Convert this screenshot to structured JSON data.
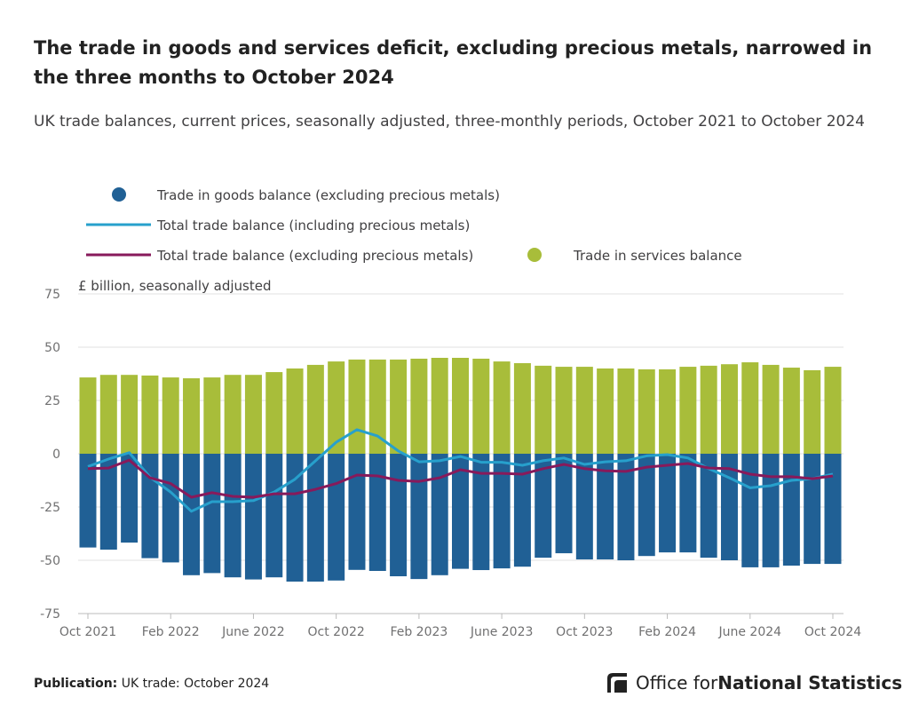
{
  "title": "The trade in goods and services deficit, excluding precious metals, narrowed in the three months to October 2024",
  "subtitle": "UK trade balances, current prices, seasonally adjusted, three-monthly periods, October 2021 to October 2024",
  "footer": {
    "label": "Publication:",
    "value": "UK trade: October 2024"
  },
  "logo": {
    "text_a": "Office for ",
    "text_b": "National Statistics"
  },
  "chart_data": {
    "type": "bar",
    "ylabel": "£ billion, seasonally adjusted",
    "ylim": [
      -75,
      75
    ],
    "yticks": [
      75,
      50,
      25,
      0,
      -25,
      -50,
      -75
    ],
    "grid": true,
    "legend_placement": "top",
    "xticks": [
      "Oct 2021",
      "Feb 2022",
      "June 2022",
      "Oct 2022",
      "Feb 2023",
      "June 2023",
      "Oct 2023",
      "Feb 2024",
      "June 2024",
      "Oct 2024"
    ],
    "categories": [
      "Oct 2021",
      "Nov 2021",
      "Dec 2021",
      "Jan 2022",
      "Feb 2022",
      "Mar 2022",
      "Apr 2022",
      "May 2022",
      "June 2022",
      "Jul 2022",
      "Aug 2022",
      "Sep 2022",
      "Oct 2022",
      "Nov 2022",
      "Dec 2022",
      "Jan 2023",
      "Feb 2023",
      "Mar 2023",
      "Apr 2023",
      "May 2023",
      "June 2023",
      "Jul 2023",
      "Aug 2023",
      "Sep 2023",
      "Oct 2023",
      "Nov 2023",
      "Dec 2023",
      "Jan 2024",
      "Feb 2024",
      "Mar 2024",
      "Apr 2024",
      "May 2024",
      "June 2024",
      "Jul 2024",
      "Aug 2024",
      "Sep 2024",
      "Oct 2024"
    ],
    "series": [
      {
        "name": "Trade in goods balance (excluding precious metals)",
        "kind": "bar",
        "color": "#206095",
        "values": [
          -44,
          -45,
          -41.7,
          -49,
          -51,
          -57,
          -56,
          -58,
          -59,
          -58,
          -60,
          -60,
          -59.5,
          -54.5,
          -55,
          -57.5,
          -58.8,
          -57,
          -54,
          -54.6,
          -53.8,
          -53,
          -48.8,
          -46.7,
          -49.6,
          -49.6,
          -50,
          -48,
          -46.3,
          -46.3,
          -48.8,
          -50,
          -53.3,
          -53.3,
          -52.5,
          -51.7,
          -51.7
        ]
      },
      {
        "name": "Trade in services balance",
        "kind": "bar",
        "color": "#a8bd3a",
        "values": [
          35.8,
          37,
          37,
          36.7,
          35.8,
          35.4,
          35.8,
          37,
          37,
          38.3,
          40,
          41.7,
          43.3,
          44.2,
          44.2,
          44.2,
          44.6,
          45,
          45,
          44.6,
          43.3,
          42.5,
          41.3,
          40.8,
          40.8,
          40,
          40,
          39.6,
          39.6,
          40.8,
          41.3,
          42,
          42.9,
          41.7,
          40.4,
          39.2,
          40.8
        ]
      },
      {
        "name": "Total trade balance (including precious metals)",
        "kind": "line",
        "color": "#27a0cc",
        "values": [
          -6,
          -2.5,
          0.5,
          -11,
          -18,
          -27,
          -22.5,
          -22.5,
          -22,
          -18,
          -12,
          -3.3,
          5.4,
          11.3,
          8.3,
          1.3,
          -3.8,
          -3.3,
          -1.3,
          -4,
          -4,
          -5.4,
          -3.3,
          -2,
          -5,
          -3.8,
          -3.3,
          -1,
          -0.4,
          -2,
          -7,
          -11.3,
          -16,
          -15,
          -12.5,
          -11.7,
          -9.6
        ]
      },
      {
        "name": "Total trade balance (excluding precious metals)",
        "kind": "line",
        "color": "#871a5b",
        "values": [
          -7,
          -6.7,
          -3,
          -11.3,
          -14,
          -20.4,
          -18.3,
          -20,
          -20.4,
          -18.8,
          -18.8,
          -16.7,
          -14,
          -10,
          -10.4,
          -12.5,
          -13,
          -11.3,
          -7.5,
          -9.2,
          -9.2,
          -9.6,
          -7,
          -5,
          -7,
          -8,
          -8.3,
          -6.3,
          -5.4,
          -4.6,
          -6.7,
          -7,
          -9.6,
          -10.8,
          -10.8,
          -11.7,
          -10.4
        ]
      }
    ]
  }
}
